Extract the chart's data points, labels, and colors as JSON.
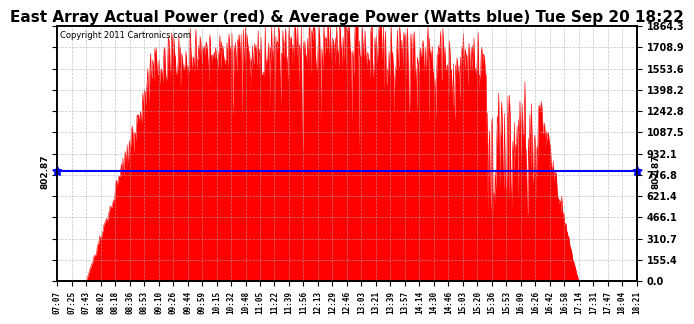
{
  "title": "East Array Actual Power (red) & Average Power (Watts blue) Tue Sep 20 18:22",
  "copyright_text": "Copyright 2011 Cartronics.com",
  "average_power": 802.87,
  "y_max": 1864.3,
  "y_ticks": [
    0.0,
    155.4,
    310.7,
    466.1,
    621.4,
    776.8,
    932.1,
    1087.5,
    1242.8,
    1398.2,
    1553.6,
    1708.9,
    1864.3
  ],
  "y_tick_labels": [
    "0.0",
    "155.4",
    "310.7",
    "466.1",
    "621.4",
    "776.8",
    "932.1",
    "1087.5",
    "1242.8",
    "1398.2",
    "1553.6",
    "1708.9",
    "1864.3"
  ],
  "background_color": "#ffffff",
  "plot_bg_color": "#ffffff",
  "fill_color": "#ff0000",
  "line_color": "#ff0000",
  "avg_line_color": "#0000ff",
  "grid_color": "#aaaaaa",
  "title_fontsize": 11,
  "avg_label": "802.87",
  "x_tick_labels": [
    "07:07",
    "07:25",
    "07:43",
    "08:02",
    "08:18",
    "08:36",
    "08:53",
    "09:10",
    "09:26",
    "09:44",
    "09:59",
    "10:15",
    "10:32",
    "10:48",
    "11:05",
    "11:22",
    "11:39",
    "11:56",
    "12:13",
    "12:29",
    "12:46",
    "13:03",
    "13:21",
    "13:39",
    "13:57",
    "14:14",
    "14:30",
    "14:46",
    "15:03",
    "15:20",
    "15:36",
    "15:53",
    "16:09",
    "16:26",
    "16:42",
    "16:58",
    "17:14",
    "17:31",
    "17:47",
    "18:04",
    "18:21"
  ]
}
